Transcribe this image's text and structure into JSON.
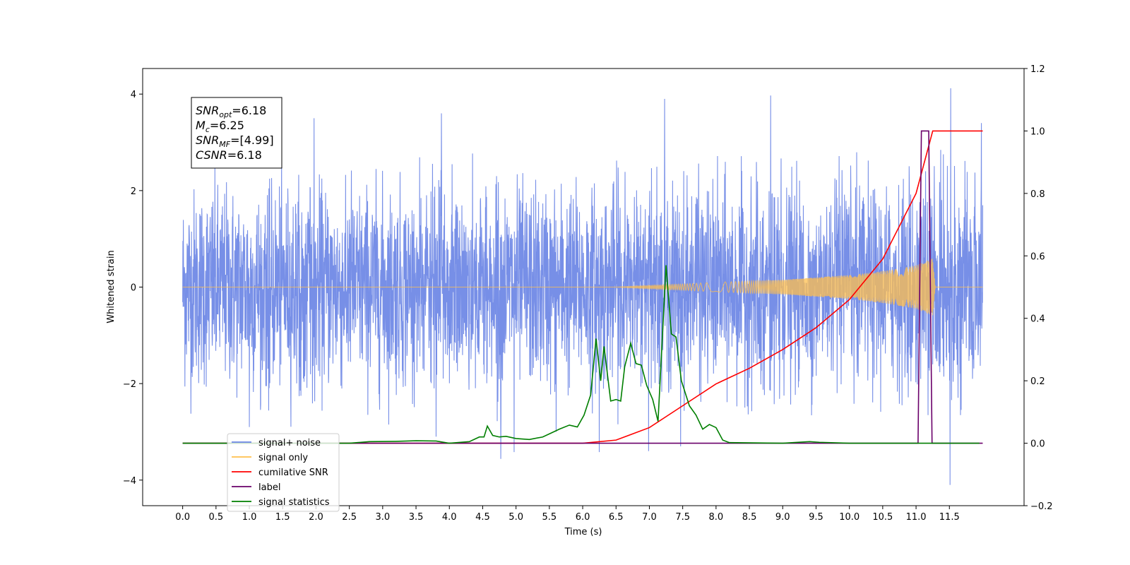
{
  "chart_data": {
    "type": "line",
    "title": "",
    "xlabel": "Time (s)",
    "ylabel": "Whitened strain",
    "y2label": "",
    "xlim": [
      -0.6,
      12.62
    ],
    "ylim": [
      -4.53,
      4.53
    ],
    "y2lim": [
      -0.2,
      1.2
    ],
    "x_ticks": [
      0.0,
      0.5,
      1.0,
      1.5,
      2.0,
      2.5,
      3.0,
      3.5,
      4.0,
      4.5,
      5.0,
      5.5,
      6.0,
      6.5,
      7.0,
      7.5,
      8.0,
      8.5,
      9.0,
      9.5,
      10.0,
      10.5,
      11.0,
      11.5
    ],
    "x_tick_labels": [
      "0.0",
      "0.5",
      "1.0",
      "1.5",
      "2.0",
      "2.5",
      "3.0",
      "3.5",
      "4.0",
      "4.5",
      "5.0",
      "5.5",
      "6.0",
      "6.5",
      "7.0",
      "7.5",
      "8.0",
      "8.5",
      "9.0",
      "9.5",
      "10.0",
      "10.5",
      "11.0",
      "11.5"
    ],
    "y_ticks": [
      -4,
      -2,
      0,
      2,
      4
    ],
    "y_tick_labels": [
      "−4",
      "−2",
      "0",
      "2",
      "4"
    ],
    "y2_ticks": [
      -0.2,
      0.0,
      0.2,
      0.4,
      0.6,
      0.8,
      1.0,
      1.2
    ],
    "y2_tick_labels": [
      "−0.2",
      "0.0",
      "0.2",
      "0.4",
      "0.6",
      "0.8",
      "1.0",
      "1.2"
    ],
    "grid": false,
    "legend_position": "lower-left",
    "annotation": {
      "lines": [
        {
          "base": "SNR",
          "sub": "opt",
          "value": "=6.18"
        },
        {
          "base": "M",
          "sub": "c",
          "value": "=6.25"
        },
        {
          "base": "SNR",
          "sub": "MF",
          "value": "=[4.99]"
        },
        {
          "base": "CSNR",
          "sub": "",
          "value": "=6.18"
        }
      ]
    },
    "series": [
      {
        "name": "signal+ noise",
        "axis": "left",
        "color": "#6b86e5",
        "kind": "noise",
        "x_range": [
          0.0,
          12.0
        ],
        "typical_envelope": [
          -2.2,
          2.2
        ],
        "spikes": [
          {
            "x": 1.97,
            "y": 3.5
          },
          {
            "x": 3.88,
            "y": 3.6
          },
          {
            "x": 7.23,
            "y": 3.9
          },
          {
            "x": 8.82,
            "y": 3.97
          },
          {
            "x": 11.52,
            "y": 4.12
          },
          {
            "x": 11.98,
            "y": 3.4
          },
          {
            "x": 4.77,
            "y": -3.56
          },
          {
            "x": 4.97,
            "y": -3.42
          },
          {
            "x": 6.25,
            "y": -3.42
          },
          {
            "x": 11.51,
            "y": -4.1
          },
          {
            "x": 7.47,
            "y": -3.3
          },
          {
            "x": 6.99,
            "y": -3.4
          },
          {
            "x": 3.8,
            "y": -3.1
          },
          {
            "x": 1.0,
            "y": -2.9
          },
          {
            "x": 5.6,
            "y": -3.0
          }
        ]
      },
      {
        "name": "signal only",
        "axis": "left",
        "color": "#ffbf4d",
        "kind": "chirp",
        "envelope": [
          {
            "x": 0.0,
            "amp": 0.0
          },
          {
            "x": 6.5,
            "amp": 0.0
          },
          {
            "x": 7.0,
            "amp": 0.03
          },
          {
            "x": 8.0,
            "amp": 0.1
          },
          {
            "x": 9.0,
            "amp": 0.15
          },
          {
            "x": 10.0,
            "amp": 0.25
          },
          {
            "x": 10.5,
            "amp": 0.33
          },
          {
            "x": 11.0,
            "amp": 0.45
          },
          {
            "x": 11.25,
            "amp": 0.6
          },
          {
            "x": 11.29,
            "amp": 0.0
          },
          {
            "x": 12.0,
            "amp": 0.0
          }
        ]
      },
      {
        "name": "cumilative SNR",
        "axis": "right",
        "color": "#ff0000",
        "x": [
          0.0,
          6.0,
          6.5,
          7.0,
          7.5,
          8.0,
          8.5,
          9.0,
          9.5,
          10.0,
          10.5,
          11.0,
          11.25,
          12.0
        ],
        "y": [
          0.0,
          0.0,
          0.01,
          0.05,
          0.12,
          0.19,
          0.24,
          0.3,
          0.37,
          0.46,
          0.59,
          0.8,
          1.0,
          1.0
        ]
      },
      {
        "name": "label",
        "axis": "right",
        "color": "#6a006a",
        "x": [
          0.0,
          11.03,
          11.08,
          11.19,
          11.24,
          12.0
        ],
        "y": [
          0.0,
          0.0,
          1.0,
          1.0,
          0.0,
          0.0
        ]
      },
      {
        "name": "signal statistics",
        "axis": "right",
        "color": "#007f00",
        "x": [
          0.0,
          2.5,
          2.8,
          3.2,
          3.5,
          3.8,
          4.0,
          4.3,
          4.45,
          4.52,
          4.57,
          4.65,
          4.75,
          4.85,
          5.0,
          5.2,
          5.4,
          5.55,
          5.65,
          5.8,
          5.92,
          6.02,
          6.12,
          6.2,
          6.27,
          6.32,
          6.42,
          6.5,
          6.57,
          6.63,
          6.72,
          6.8,
          6.88,
          6.96,
          7.05,
          7.13,
          7.25,
          7.33,
          7.4,
          7.48,
          7.6,
          7.7,
          7.8,
          7.9,
          8.0,
          8.1,
          8.2,
          9.0,
          9.4,
          9.55,
          10.0,
          11.0,
          11.95
        ],
        "y": [
          0.0,
          0.0,
          0.005,
          0.006,
          0.008,
          0.007,
          0.0,
          0.005,
          0.02,
          0.02,
          0.055,
          0.025,
          0.02,
          0.022,
          0.015,
          0.012,
          0.02,
          0.035,
          0.045,
          0.058,
          0.052,
          0.09,
          0.155,
          0.335,
          0.2,
          0.31,
          0.135,
          0.14,
          0.135,
          0.245,
          0.32,
          0.255,
          0.25,
          0.185,
          0.14,
          0.07,
          0.57,
          0.35,
          0.34,
          0.2,
          0.12,
          0.09,
          0.045,
          0.06,
          0.05,
          0.01,
          0.002,
          0.0,
          0.005,
          0.003,
          0.0,
          0.0,
          0.0
        ]
      }
    ],
    "legend_entries": [
      {
        "label": "signal+ noise",
        "color": "#6b86e5"
      },
      {
        "label": "signal only",
        "color": "#ffbf4d"
      },
      {
        "label": "cumilative SNR",
        "color": "#ff0000"
      },
      {
        "label": "label",
        "color": "#6a006a"
      },
      {
        "label": "signal statistics",
        "color": "#007f00"
      }
    ]
  }
}
